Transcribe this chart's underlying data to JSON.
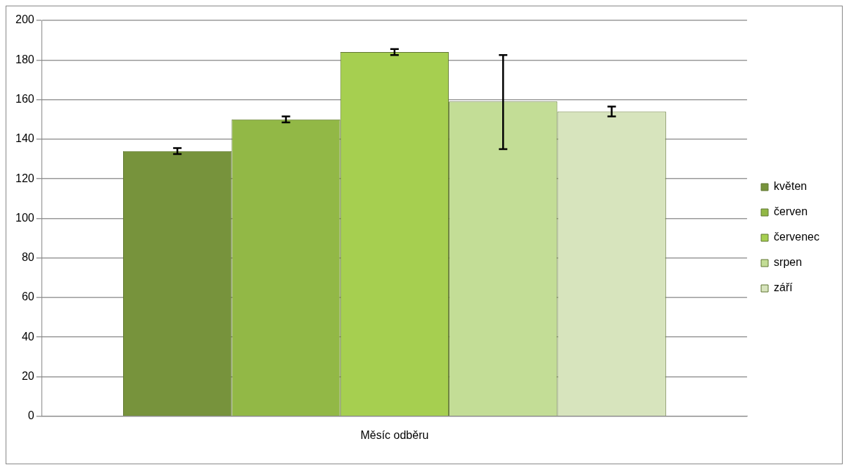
{
  "chart_data": {
    "type": "bar",
    "categories": [
      "Měsíc odběru"
    ],
    "series": [
      {
        "name": "květen",
        "color": "#77933c",
        "values": [
          134
        ],
        "errors": [
          1.5
        ]
      },
      {
        "name": "červen",
        "color": "#92b846",
        "values": [
          150
        ],
        "errors": [
          1.5
        ]
      },
      {
        "name": "červenec",
        "color": "#a6cf50",
        "values": [
          184
        ],
        "errors": [
          1.5
        ]
      },
      {
        "name": "srpen",
        "color": "#c3dd96",
        "values": [
          159
        ],
        "errors": [
          [
            135,
            182.5
          ]
        ]
      },
      {
        "name": "září",
        "color": "#d7e4bd",
        "values": [
          154
        ],
        "errors": [
          2.5
        ]
      }
    ],
    "ylim": [
      0,
      200
    ],
    "yticks": [
      0,
      20,
      40,
      60,
      80,
      100,
      120,
      140,
      160,
      180,
      200
    ],
    "grid": "y",
    "legend": "right"
  }
}
